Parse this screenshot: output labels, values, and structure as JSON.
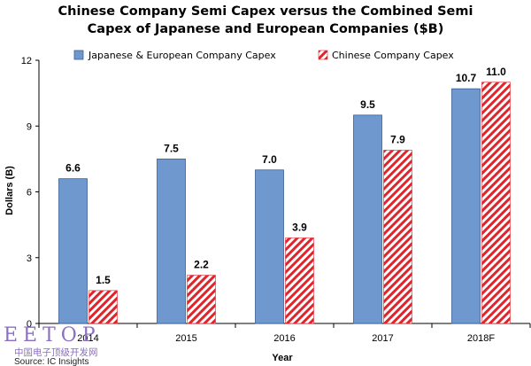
{
  "chart_data": {
    "type": "bar",
    "title_line1": "Chinese Company Semi Capex versus the Combined Semi",
    "title_line2": "Capex of Japanese and European Companies ($B)",
    "xlabel": "Year",
    "ylabel": "Dollars (B)",
    "categories": [
      "2014",
      "2015",
      "2016",
      "2017",
      "2018F"
    ],
    "ylim": [
      0,
      12
    ],
    "yticks": [
      0,
      3,
      6,
      9,
      12
    ],
    "grid": false,
    "legend_position": "top",
    "series": [
      {
        "name": "Japanese & European Company Capex",
        "values": [
          6.6,
          7.5,
          7.0,
          9.5,
          10.7
        ],
        "labels": [
          "6.6",
          "7.5",
          "7.0",
          "9.5",
          "10.7"
        ],
        "color": "#6f98cf",
        "pattern": "solid"
      },
      {
        "name": "Chinese Company Capex",
        "values": [
          1.5,
          2.2,
          3.9,
          7.9,
          11.0
        ],
        "labels": [
          "1.5",
          "2.2",
          "3.9",
          "7.9",
          "11.0"
        ],
        "color": "#e0242b",
        "pattern": "diagonal-hatch"
      }
    ]
  },
  "source": "Source: IC Insights",
  "watermark": {
    "brand": "EETOP",
    "subtitle": "中国电子顶级开发网"
  }
}
